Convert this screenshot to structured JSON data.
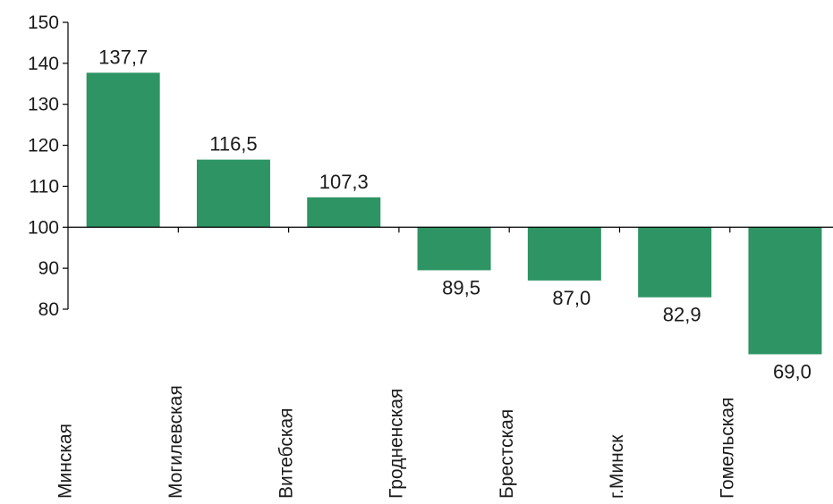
{
  "chart_data": {
    "type": "bar",
    "baseline": 100,
    "categories": [
      "Минская",
      "Могилевская",
      "Витебская",
      "Гродненская",
      "Брестская",
      "г.Минск",
      "Гомельская"
    ],
    "values": [
      137.7,
      116.5,
      107.3,
      89.5,
      87.0,
      82.9,
      69.0
    ],
    "value_labels": [
      "137,7",
      "116,5",
      "107,3",
      "89,5",
      "87,0",
      "82,9",
      "69,0"
    ],
    "yticks": [
      150,
      140,
      130,
      120,
      110,
      100,
      90,
      80
    ],
    "ylim": [
      80,
      150
    ],
    "title": "",
    "xlabel": "",
    "ylabel": "",
    "grid": false,
    "bar_color": "#2e9464"
  }
}
